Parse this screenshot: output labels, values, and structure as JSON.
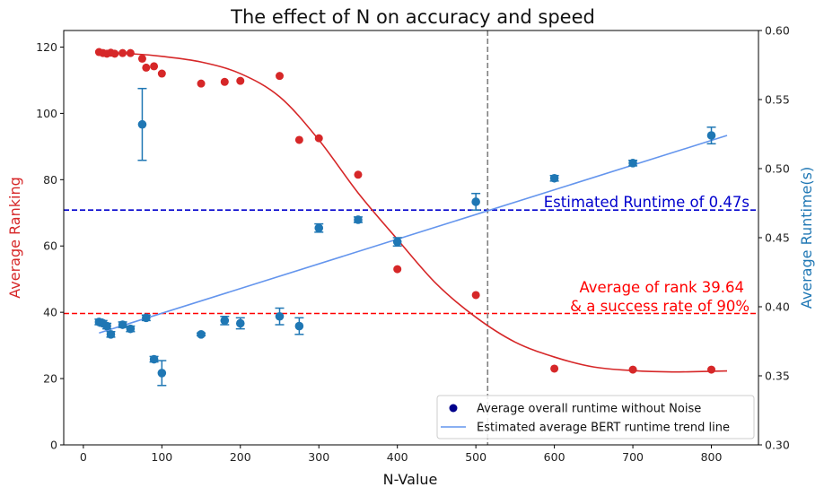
{
  "chart_data": {
    "type": "scatter",
    "title": "The effect of N on accuracy and speed",
    "xlabel": "N-Value",
    "ylabel_left": "Average Ranking",
    "ylabel_right": "Average Runtime(s)",
    "xlim": [
      -25,
      860
    ],
    "ylim_left": [
      0,
      125
    ],
    "ylim_right": [
      0.3,
      0.6
    ],
    "x_ticks": [
      0,
      100,
      200,
      300,
      400,
      500,
      600,
      700,
      800
    ],
    "y_left_ticks": [
      0,
      20,
      40,
      60,
      80,
      100,
      120
    ],
    "y_right_ticks": [
      "0.30",
      "0.35",
      "0.40",
      "0.45",
      "0.50",
      "0.55",
      "0.60"
    ],
    "colors": {
      "ranking": "#d62728",
      "runtime": "#1f77b4",
      "trend": "#6495ed",
      "runtime_hline": "#0000cd",
      "ranking_hline": "#ff0000",
      "vline": "#808080",
      "legend_marker": "#00008b"
    },
    "ranking_points": {
      "x": [
        20,
        25,
        30,
        35,
        40,
        50,
        60,
        75,
        80,
        90,
        100,
        150,
        180,
        200,
        250,
        275,
        300,
        350,
        400,
        500,
        600,
        700,
        800
      ],
      "y": [
        118.5,
        118.2,
        118.0,
        118.3,
        118.0,
        118.2,
        118.2,
        116.5,
        113.8,
        114.2,
        112.0,
        109.0,
        109.5,
        109.8,
        111.3,
        92.0,
        92.5,
        81.5,
        53.0,
        45.2,
        23.0,
        22.7,
        22.7
      ]
    },
    "ranking_curve": {
      "x": [
        20,
        60,
        100,
        150,
        200,
        250,
        300,
        350,
        400,
        450,
        500,
        550,
        600,
        650,
        700,
        750,
        800,
        820
      ],
      "y": [
        118.2,
        118.0,
        117.2,
        115.5,
        112.0,
        105.0,
        92.0,
        76.0,
        62.0,
        48.5,
        38.5,
        31.0,
        26.5,
        23.5,
        22.4,
        22.0,
        22.2,
        22.3
      ]
    },
    "runtime_points": {
      "x": [
        20,
        25,
        30,
        35,
        50,
        60,
        75,
        80,
        90,
        100,
        150,
        180,
        200,
        250,
        275,
        300,
        350,
        400,
        500,
        600,
        700,
        800
      ],
      "y": [
        0.389,
        0.388,
        0.386,
        0.38,
        0.387,
        0.384,
        0.532,
        0.392,
        0.362,
        0.352,
        0.38,
        0.39,
        0.388,
        0.393,
        0.386,
        0.457,
        0.463,
        0.447,
        0.476,
        0.493,
        0.504,
        0.524
      ],
      "err": [
        0.002,
        0.002,
        0.002,
        0.002,
        0.002,
        0.002,
        0.026,
        0.002,
        0.002,
        0.009,
        0.001,
        0.003,
        0.004,
        0.006,
        0.006,
        0.003,
        0.002,
        0.003,
        0.006,
        0.002,
        0.002,
        0.006
      ]
    },
    "runtime_trend": {
      "x": [
        20,
        820
      ],
      "y": [
        0.381,
        0.524
      ]
    },
    "hline_runtime": 0.47,
    "hline_ranking": 39.64,
    "vline_x": 515,
    "annotations": {
      "runtime": "Estimated Runtime of 0.47s",
      "ranking_line1": "Average of rank 39.64",
      "ranking_line2": "& a success rate of 90%"
    },
    "legend": [
      {
        "label": "Average overall runtime without Noise",
        "kind": "marker"
      },
      {
        "label": "Estimated average BERT runtime trend line",
        "kind": "line"
      }
    ]
  }
}
